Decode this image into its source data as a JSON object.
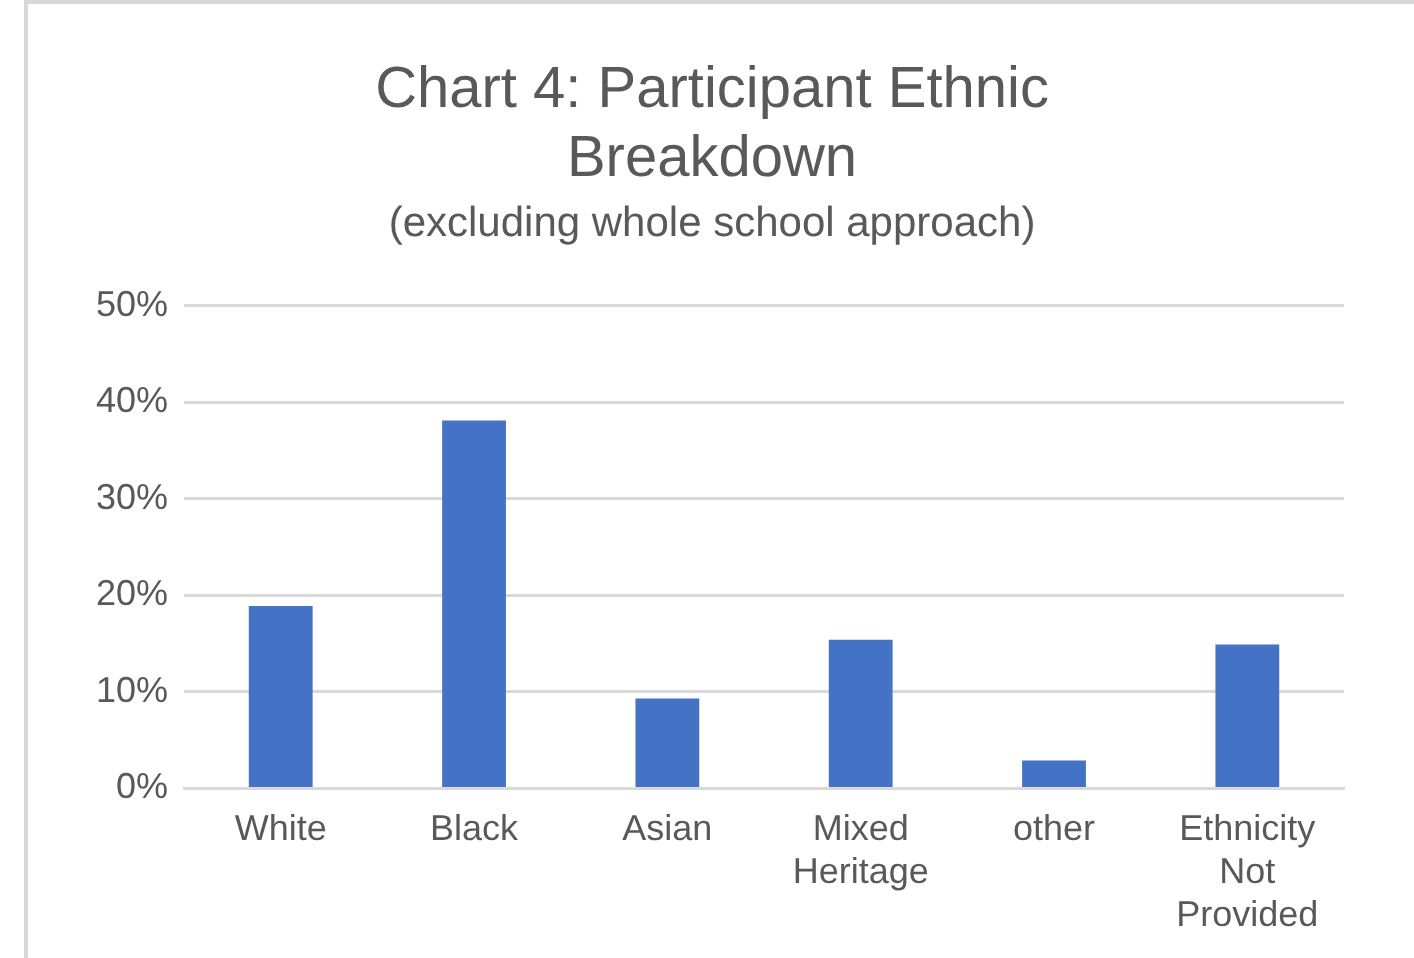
{
  "chart_data": {
    "type": "bar",
    "title": "Chart 4: Participant Ethnic Breakdown",
    "subtitle": "(excluding whole school approach)",
    "categories": [
      "White",
      "Black",
      "Asian",
      "Mixed Heritage",
      "other",
      "Ethnicity Not Provided"
    ],
    "values": [
      18.9,
      38.1,
      9.3,
      15.4,
      2.9,
      14.9
    ],
    "color": "#4472c4",
    "ylim": [
      0,
      50
    ],
    "yticks": [
      {
        "value": 0,
        "label": "0%"
      },
      {
        "value": 10,
        "label": "10%"
      },
      {
        "value": 20,
        "label": "20%"
      },
      {
        "value": 30,
        "label": "30%"
      },
      {
        "value": 40,
        "label": "40%"
      },
      {
        "value": 50,
        "label": "50%"
      }
    ],
    "grid": "y",
    "legend": false
  }
}
